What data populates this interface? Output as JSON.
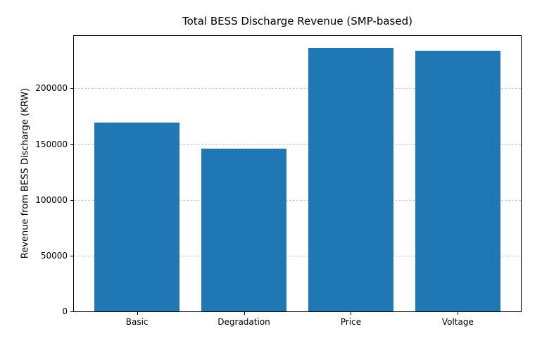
{
  "chart_data": {
    "type": "bar",
    "title": "Total BESS Discharge Revenue (SMP-based)",
    "xlabel": "",
    "ylabel": "Revenue from BESS Discharge (KRW)",
    "categories": [
      "Basic",
      "Degradation",
      "Price",
      "Voltage"
    ],
    "values": [
      169000,
      146000,
      236000,
      234000
    ],
    "yticks": [
      0,
      50000,
      100000,
      150000,
      200000
    ],
    "ylim": [
      0,
      247000
    ],
    "xlim": [
      -0.59,
      3.59
    ],
    "bar_width_fraction": 0.8,
    "bar_color": "#1f77b4",
    "grid": "horizontal-dashed",
    "grid_color": "#cccccc",
    "legend": "none"
  }
}
